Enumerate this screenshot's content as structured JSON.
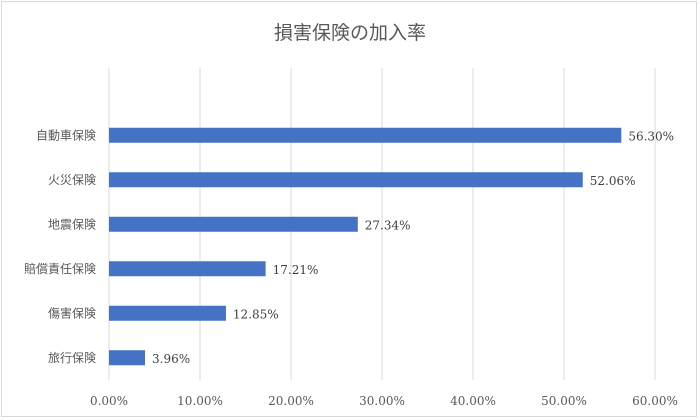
{
  "chart_data": {
    "type": "bar",
    "orientation": "horizontal",
    "title": "損害保険の加入率",
    "categories": [
      "自動車保険",
      "火災保険",
      "地震保険",
      "賠償責任保険",
      "傷害保険",
      "旅行保険"
    ],
    "values": [
      56.3,
      52.06,
      27.34,
      17.21,
      12.85,
      3.96
    ],
    "value_labels": [
      "56.30%",
      "52.06%",
      "27.34%",
      "17.21%",
      "12.85%",
      "3.96%"
    ],
    "xlim": [
      0,
      60
    ],
    "xticks": [
      0,
      10,
      20,
      30,
      40,
      50,
      60
    ],
    "xtick_labels": [
      "0.00%",
      "10.00%",
      "20.00%",
      "30.00%",
      "40.00%",
      "50.00%",
      "60.00%"
    ],
    "grid": true,
    "bar_color": "#4472c4"
  }
}
